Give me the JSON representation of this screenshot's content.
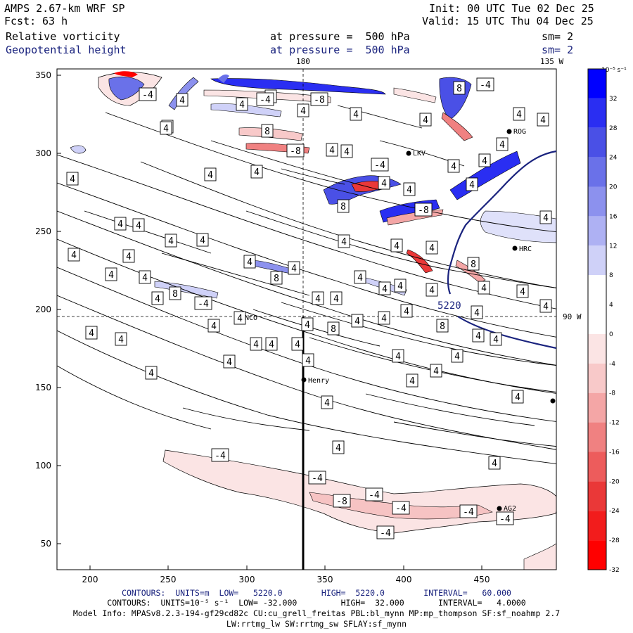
{
  "header": {
    "title": "AMPS 2.67-km WRF SP",
    "fcst_label": "Fcst:",
    "fcst_value": "63 h",
    "init": "Init: 00 UTC Tue 02 Dec 25",
    "valid": "Valid: 15 UTC Thu 04 Dec 25",
    "field1_name": "Relative vorticity",
    "field1_level": "at pressure =  500 hPa",
    "field1_sm": "sm= 2",
    "field2_name": "Geopotential height",
    "field2_level": "at pressure =  500 hPa",
    "field2_sm": "sm= 2"
  },
  "map": {
    "top_labels": [
      "180",
      "135 W"
    ],
    "right_label": "90 W",
    "x_ticks": [
      "200",
      "250",
      "300",
      "350",
      "400",
      "450"
    ],
    "y_ticks": [
      "350",
      "300",
      "250",
      "200",
      "150",
      "100",
      "50"
    ],
    "height_label": "5220",
    "stations": [
      "ROG",
      "LKV",
      "HRC",
      "NCO",
      "Henry",
      "AG2"
    ],
    "contour_labels": [
      "4",
      "-4",
      "8",
      "-8"
    ]
  },
  "colorbar": {
    "units": "10⁻⁵ s⁻¹",
    "labels": [
      "32",
      "28",
      "24",
      "20",
      "16",
      "12",
      "8",
      "4",
      "0",
      "-4",
      "-8",
      "-12",
      "-16",
      "-20",
      "-24",
      "-28",
      "-32"
    ],
    "colors": [
      "#0000ff",
      "#2a2ef2",
      "#4a50e6",
      "#6a71e9",
      "#8c91ee",
      "#aeb1f3",
      "#cfd1f8",
      "#ffffff",
      "#ffffff",
      "#fbe4e4",
      "#f8c9c9",
      "#f4a6a6",
      "#f08181",
      "#ed5c5c",
      "#ea3838",
      "#f21c1c",
      "#ff0000"
    ]
  },
  "footer": {
    "line1": "CONTOURS:  UNITS=m  LOW=   5220.0        HIGH=  5220.0        INTERVAL=   60.000",
    "line2": "CONTOURS:  UNITS=10⁻⁵ s⁻¹  LOW= -32.000         HIGH=  32.000       INTERVAL=   4.0000",
    "line3": "Model Info: MPASv8.2.3-194-gf29cd82c CU:cu_grell_freitas PBL:bl_mynn MP:mp_thompson SF:sf_noahmp 2.7",
    "line4": "LW:rrtmg_lw SW:rrtmg_sw SFLAY:sf_mynn"
  }
}
